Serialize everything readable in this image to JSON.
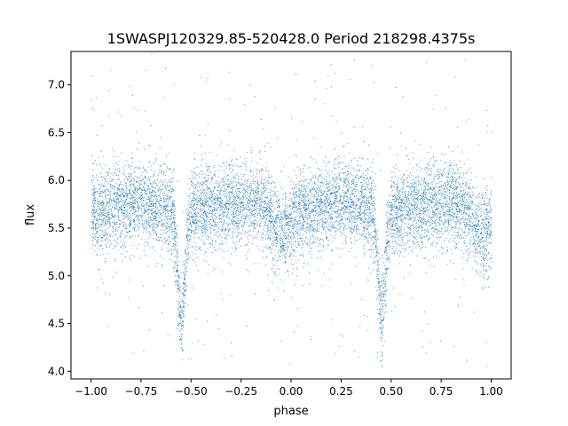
{
  "chart_data": {
    "type": "scatter",
    "title": "1SWASPJ120329.85-520428.0 Period 218298.4375s",
    "xlabel": "phase",
    "ylabel": "flux",
    "xlim": [
      -1.1,
      1.1
    ],
    "ylim": [
      3.92,
      7.35
    ],
    "x_ticks": [
      -1.0,
      -0.75,
      -0.5,
      -0.25,
      0.0,
      0.25,
      0.5,
      0.75,
      1.0
    ],
    "x_tick_labels": [
      "−1.00",
      "−0.75",
      "−0.50",
      "−0.25",
      "0.00",
      "0.25",
      "0.50",
      "0.75",
      "1.00"
    ],
    "y_ticks": [
      4.0,
      4.5,
      5.0,
      5.5,
      6.0,
      6.5,
      7.0
    ],
    "y_tick_labels": [
      "4.0",
      "4.5",
      "5.0",
      "5.5",
      "6.0",
      "6.5",
      "7.0"
    ],
    "grid": false,
    "legend": "none",
    "color": "#1f77b4",
    "marker": "tiny point",
    "series": [
      {
        "description_points": [
          {
            "phase": -1.0,
            "flux": 5.7
          },
          {
            "phase": -0.75,
            "flux": 5.72
          },
          {
            "phase": -0.6,
            "flux": 5.6
          },
          {
            "phase": -0.55,
            "flux": 4.7
          },
          {
            "phase": -0.5,
            "flux": 5.6
          },
          {
            "phase": -0.25,
            "flux": 5.78
          },
          {
            "phase": 0.0,
            "flux": 5.55
          },
          {
            "phase": 0.25,
            "flux": 5.75
          },
          {
            "phase": 0.4,
            "flux": 5.6
          },
          {
            "phase": 0.45,
            "flux": 4.7
          },
          {
            "phase": 0.5,
            "flux": 5.6
          },
          {
            "phase": 0.75,
            "flux": 5.72
          },
          {
            "phase": 1.0,
            "flux": 5.55
          }
        ],
        "primary_eclipse_phases": [
          -0.55,
          0.45
        ],
        "primary_eclipse_min_flux": 4.6,
        "secondary_eclipse_phases": [
          -0.05,
          0.95
        ],
        "secondary_eclipse_depth": 0.25,
        "baseline_flux": 5.72,
        "scatter_sigma": 0.22
      }
    ]
  }
}
